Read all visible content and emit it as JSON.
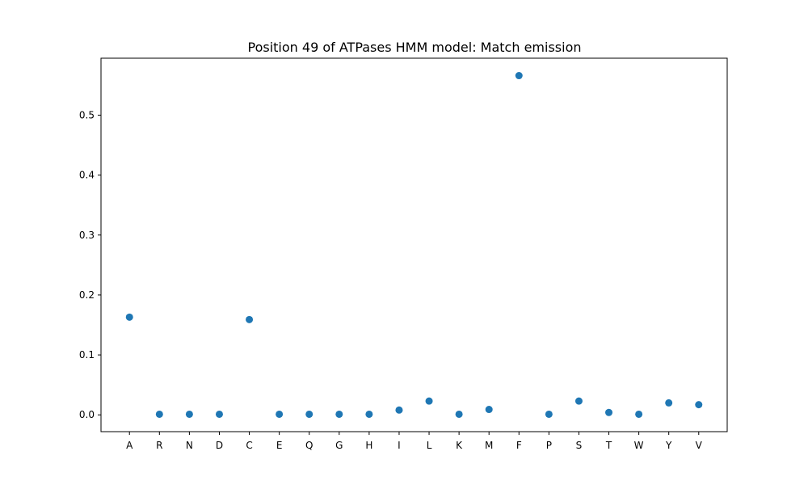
{
  "chart_data": {
    "type": "scatter",
    "title": "Position 49 of ATPases HMM model: Match emission",
    "xlabel": "",
    "ylabel": "",
    "categories": [
      "A",
      "R",
      "N",
      "D",
      "C",
      "E",
      "Q",
      "G",
      "H",
      "I",
      "L",
      "K",
      "M",
      "F",
      "P",
      "S",
      "T",
      "W",
      "Y",
      "V"
    ],
    "values": [
      0.163,
      0.001,
      0.001,
      0.001,
      0.159,
      0.001,
      0.001,
      0.001,
      0.001,
      0.008,
      0.023,
      0.001,
      0.009,
      0.566,
      0.001,
      0.023,
      0.004,
      0.001,
      0.02,
      0.017
    ],
    "ylim": [
      -0.028,
      0.595
    ],
    "yticks": [
      "0.0",
      "0.1",
      "0.2",
      "0.3",
      "0.4",
      "0.5"
    ],
    "ytick_values": [
      0.0,
      0.1,
      0.2,
      0.3,
      0.4,
      0.5
    ],
    "grid": false,
    "marker_color": "#1f77b4"
  }
}
